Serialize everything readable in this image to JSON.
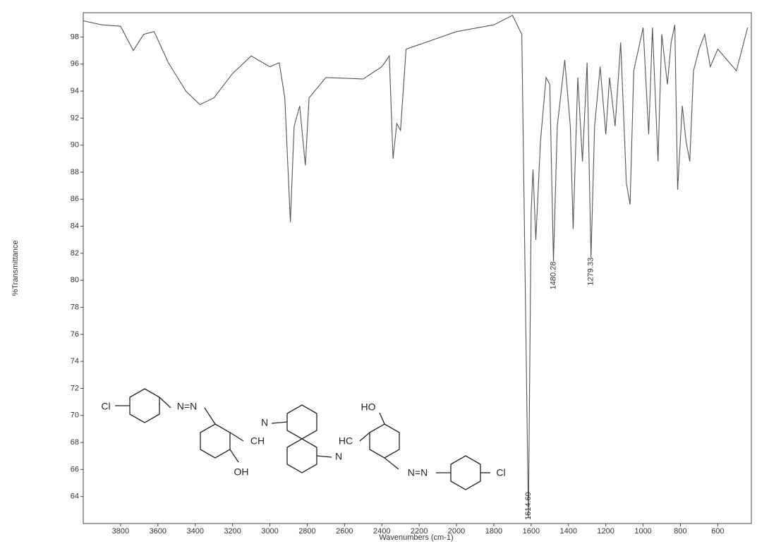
{
  "chart_data": {
    "type": "line",
    "x_label": "Wavenumbers (cm-1)",
    "y_label": "%Transmittance",
    "color": "#555555",
    "x": [
      4000,
      3900,
      3800,
      3732,
      3676,
      3620,
      3544,
      3450,
      3375,
      3300,
      3200,
      3100,
      3000,
      2950,
      2920,
      2890,
      2870,
      2840,
      2810,
      2790,
      2700,
      2500,
      2400,
      2360,
      2340,
      2320,
      2300,
      2270,
      2000,
      1800,
      1700,
      1650,
      1614.6,
      1600,
      1590,
      1575,
      1550,
      1520,
      1500,
      1480.28,
      1460,
      1420,
      1390,
      1375,
      1350,
      1325,
      1300,
      1279.33,
      1260,
      1230,
      1200,
      1180,
      1150,
      1120,
      1090,
      1070,
      1050,
      1000,
      970,
      950,
      920,
      900,
      870,
      850,
      830,
      815,
      790,
      770,
      750,
      730,
      700,
      670,
      640,
      600,
      550,
      500,
      440
    ],
    "values": [
      99.2,
      98.9,
      98.8,
      97.0,
      98.2,
      98.4,
      96.1,
      94.0,
      93.0,
      93.5,
      95.3,
      96.6,
      95.8,
      96.1,
      93.5,
      84.3,
      91.4,
      92.9,
      88.5,
      93.5,
      95.0,
      94.9,
      95.8,
      96.6,
      89.0,
      91.6,
      91.1,
      97.1,
      98.4,
      98.9,
      99.6,
      98.2,
      62.4,
      85.1,
      88.2,
      83.0,
      90.3,
      95.0,
      94.5,
      81.4,
      91.4,
      96.3,
      91.4,
      83.8,
      95.0,
      88.8,
      96.1,
      81.7,
      91.4,
      95.8,
      90.8,
      95.0,
      91.4,
      97.6,
      87.2,
      85.6,
      95.5,
      98.7,
      90.8,
      98.7,
      88.8,
      98.2,
      94.5,
      97.6,
      98.9,
      86.7,
      92.9,
      90.3,
      88.8,
      95.5,
      97.1,
      98.2,
      95.8,
      97.1,
      96.3,
      95.5,
      98.7
    ],
    "xlim": [
      4000,
      420
    ],
    "ylim": [
      62,
      99.8
    ],
    "xticks": [
      3800,
      3600,
      3400,
      3200,
      3000,
      2800,
      2600,
      2400,
      2200,
      2000,
      1800,
      1600,
      1400,
      1200,
      1000,
      800,
      600
    ],
    "yticks": [
      64,
      66,
      68,
      70,
      72,
      74,
      76,
      78,
      80,
      82,
      84,
      86,
      88,
      90,
      92,
      94,
      96,
      98
    ],
    "annotations": [
      {
        "x": 1614.6,
        "label": "1614.60"
      },
      {
        "x": 1480.28,
        "label": "1480.28"
      },
      {
        "x": 1279.33,
        "label": "1279.33"
      }
    ],
    "structure_labels": [
      "Cl",
      "N=N",
      "N",
      "CH",
      "OH",
      "N",
      "HC",
      "HO",
      "N=N",
      "Cl"
    ]
  }
}
